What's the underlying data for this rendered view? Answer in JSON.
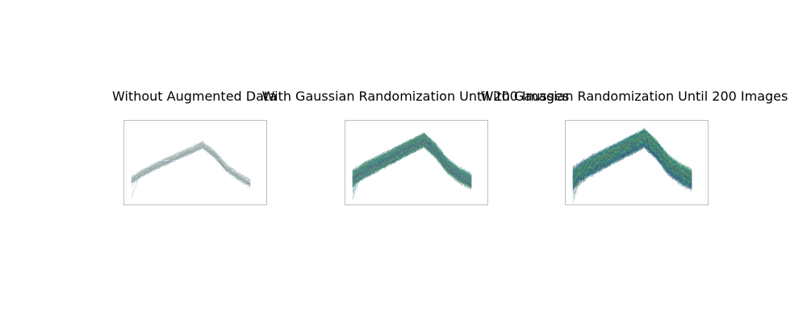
{
  "chart_data": [
    {
      "type": "line",
      "title": "Without Augmented Data",
      "xlabel": "",
      "ylabel": "",
      "axes_visible": false,
      "grid": false,
      "trace_count": 40,
      "trace_alpha": 0.35,
      "trace_colors": [
        "#7f7f9f",
        "#8fa8a0",
        "#9fc79f",
        "#b8b8c8",
        "#6f8f8f"
      ],
      "x": [
        0,
        0.1,
        0.2,
        0.3,
        0.4,
        0.5,
        0.6,
        0.7,
        0.8,
        0.9,
        1.0
      ],
      "mean_profile": [
        0.28,
        0.38,
        0.46,
        0.53,
        0.6,
        0.67,
        0.74,
        0.62,
        0.44,
        0.33,
        0.24
      ],
      "noise_level": 0.04,
      "ylim": [
        0,
        1
      ]
    },
    {
      "type": "line",
      "title": "With Gaussian Randomization Until 200 Images",
      "xlabel": "",
      "ylabel": "",
      "axes_visible": false,
      "grid": false,
      "trace_count": 200,
      "trace_alpha": 0.3,
      "trace_colors": [
        "#3b528b",
        "#21918c",
        "#5ec962",
        "#2c728e",
        "#7a9f5a",
        "#8a6f9f"
      ],
      "x": [
        0,
        0.1,
        0.2,
        0.3,
        0.4,
        0.5,
        0.6,
        0.7,
        0.8,
        0.9,
        1.0
      ],
      "mean_profile": [
        0.3,
        0.4,
        0.48,
        0.56,
        0.64,
        0.72,
        0.8,
        0.66,
        0.46,
        0.34,
        0.26
      ],
      "noise_level": 0.07,
      "ylim": [
        0,
        1
      ]
    },
    {
      "type": "line",
      "title": "With Gaussian Randomization Until 200 Images",
      "xlabel": "",
      "ylabel": "",
      "axes_visible": false,
      "grid": false,
      "trace_count": 300,
      "trace_alpha": 0.3,
      "trace_colors": [
        "#3b528b",
        "#21918c",
        "#5ec962",
        "#2c728e",
        "#46337e",
        "#7fbf5f"
      ],
      "x": [
        0,
        0.1,
        0.2,
        0.3,
        0.4,
        0.5,
        0.6,
        0.7,
        0.8,
        0.9,
        1.0
      ],
      "mean_profile": [
        0.3,
        0.41,
        0.5,
        0.58,
        0.66,
        0.74,
        0.82,
        0.68,
        0.48,
        0.36,
        0.28
      ],
      "noise_level": 0.09,
      "ylim": [
        0,
        1
      ]
    }
  ]
}
